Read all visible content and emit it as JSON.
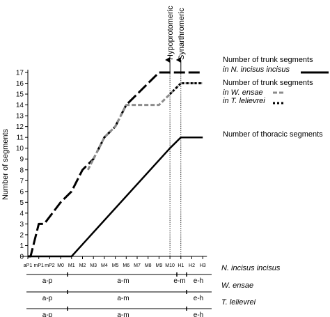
{
  "chart_data": {
    "type": "line",
    "ylabel": "Number of segments",
    "xlabel": "",
    "ylim": [
      0,
      17
    ],
    "y_ticks": [
      0,
      1,
      2,
      3,
      4,
      5,
      6,
      7,
      8,
      9,
      10,
      11,
      12,
      13,
      14,
      15,
      16,
      17
    ],
    "categories": [
      "aP1",
      "mP1",
      "mP2",
      "M0",
      "M1",
      "M2",
      "M3",
      "M4",
      "M5",
      "M6",
      "M7",
      "M8",
      "M9",
      "M10",
      "H1",
      "H2",
      "H3"
    ],
    "grid": false,
    "series": [
      {
        "key": "ni_trunk",
        "style": "long-dash",
        "color": "#000000",
        "legend_lines": [
          {
            "text": "Number of trunk segments",
            "italic": false
          },
          {
            "text": "in N. incisus incisus",
            "italic": true
          }
        ],
        "points": [
          [
            0,
            0
          ],
          [
            0.25,
            0
          ],
          [
            1,
            3
          ],
          [
            1.5,
            3
          ],
          [
            3,
            5
          ],
          [
            4,
            6
          ],
          [
            5,
            8
          ],
          [
            6,
            9
          ],
          [
            7,
            11
          ],
          [
            8,
            12
          ],
          [
            9,
            14
          ],
          [
            10,
            15
          ],
          [
            11,
            16
          ],
          [
            12,
            17
          ],
          [
            13,
            17
          ],
          [
            14,
            17
          ],
          [
            15,
            17
          ],
          [
            16,
            17
          ]
        ]
      },
      {
        "key": "we_trunk",
        "style": "dashed",
        "color": "#8c8c8c",
        "legend_lines": [
          {
            "text": "Number of trunk segments",
            "italic": false
          },
          {
            "text": "in W. ensae",
            "italic": true
          }
        ],
        "points": [
          [
            5.5,
            8
          ],
          [
            6,
            9
          ],
          [
            7,
            11
          ],
          [
            8,
            12
          ],
          [
            9,
            14
          ],
          [
            10,
            14
          ],
          [
            11,
            14
          ],
          [
            12,
            14
          ],
          [
            13,
            15
          ],
          [
            14,
            16
          ],
          [
            15,
            16
          ],
          [
            16,
            16
          ]
        ]
      },
      {
        "key": "tl_trunk",
        "style": "dotted",
        "color": "#000000",
        "legend_lines": [
          {
            "text": "in T. lelievrei",
            "italic": true
          }
        ],
        "points": [
          [
            13,
            15
          ],
          [
            14,
            16
          ],
          [
            15,
            16
          ],
          [
            16,
            16
          ]
        ]
      },
      {
        "key": "thoracic",
        "style": "solid",
        "color": "#000000",
        "legend_lines": [
          {
            "text": "Number of thoracic segments",
            "italic": false
          }
        ],
        "points": [
          [
            0,
            0
          ],
          [
            4,
            0
          ],
          [
            13,
            10
          ],
          [
            14,
            11
          ],
          [
            15,
            11
          ],
          [
            16,
            11
          ]
        ]
      }
    ],
    "annotations": [
      {
        "text": "Hypoprotomeric",
        "at_category": "M10",
        "y": 17
      },
      {
        "text": "Synarthromeric",
        "at_category": "H1",
        "y": 17
      }
    ],
    "phase_rows": [
      {
        "species": "N. incisus incisus",
        "italic": true,
        "phases": [
          {
            "label": "a-p"
          },
          {
            "label": "a-m"
          },
          {
            "label": "e-m"
          },
          {
            "label": "e-h"
          }
        ]
      },
      {
        "species": "W. ensae",
        "italic": true,
        "phases": [
          {
            "label": "a-p"
          },
          {
            "label": "a-m"
          },
          {
            "label": "e-h"
          }
        ]
      },
      {
        "species": "T. lelievrei",
        "italic": true,
        "phases": [
          {
            "label": "a-p"
          },
          {
            "label": "a-m"
          },
          {
            "label": "e-h"
          }
        ]
      }
    ]
  }
}
